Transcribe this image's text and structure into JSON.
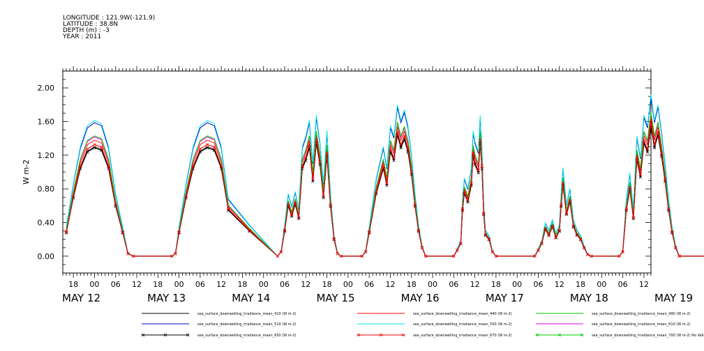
{
  "header": {
    "longitude": "LONGITUDE : 121.9W(-121.9)",
    "latitude": "LATITUDE : 38.8N",
    "depth": "DEPTH (m) : -3",
    "year": "YEAR : 2011"
  },
  "chart_data": {
    "type": "line",
    "ylabel": "W m-2",
    "ylim": [
      -0.2,
      2.2
    ],
    "yticks": [
      "0.00",
      "0.40",
      "0.80",
      "1.20",
      "1.60",
      "2.00"
    ],
    "xlim_hours": [
      -9,
      158
    ],
    "hour_tick_labels": [
      "18",
      "00",
      "06",
      "12"
    ],
    "day_labels": [
      "MAY 12",
      "MAY 13",
      "MAY 14",
      "MAY 15",
      "MAY 16",
      "MAY 17",
      "MAY 18",
      "MAY 19"
    ],
    "grid": false,
    "legend_position": "bottom",
    "series": [
      {
        "name": "sea_surface_downwelling_irradiance_mean_410 (W m-2)",
        "color": "#000000",
        "marker": "none",
        "scale": 1.0
      },
      {
        "name": "sea_surface_downwelling_irradiance_mean_440 (W m-2)",
        "color": "#ff0000",
        "marker": "none",
        "scale": 1.06
      },
      {
        "name": "sea_surface_downwelling_irradiance_mean_490 (W m-2)",
        "color": "#00cc00",
        "marker": "none",
        "scale": 1.1
      },
      {
        "name": "sea_surface_downwelling_irradiance_mean_510 (W m-2)",
        "color": "#0000cc",
        "marker": "none",
        "scale": 1.22
      },
      {
        "name": "sea_surface_downwelling_irradiance_mean_550 (W m-2)",
        "color": "#00e5e5",
        "marker": "none",
        "scale": 1.24
      },
      {
        "name": "sea_surface_downwelling_irradiance_mean_610 (W m-2)",
        "color": "#e600e6",
        "marker": "none",
        "scale": 1.09
      },
      {
        "name": "sea_surface_downwelling_irradiance_mean_650 (W m-2)",
        "color": "#000000",
        "marker": "x",
        "scale": 0.99
      },
      {
        "name": "sea_surface_downwelling_irradiance_mean_670 (W m-2)",
        "color": "#ff0000",
        "marker": "x",
        "scale": 1.02
      },
      {
        "name": "sea_surface_downwelling_irradiance_mean_700 (W m-2) No Valid Data",
        "color": "#00cc00",
        "marker": "x",
        "scale": 0
      }
    ],
    "reference_series_410": [
      [
        -8,
        0.28
      ],
      [
        -6,
        0.7
      ],
      [
        -4,
        1.05
      ],
      [
        -2,
        1.25
      ],
      [
        0,
        1.3
      ],
      [
        2,
        1.27
      ],
      [
        4,
        1.05
      ],
      [
        6,
        0.6
      ],
      [
        8,
        0.28
      ],
      [
        9.5,
        0.03
      ],
      [
        11,
        0
      ],
      [
        22,
        0
      ],
      [
        23,
        0.03
      ],
      [
        24,
        0.28
      ],
      [
        26,
        0.7
      ],
      [
        28,
        1.05
      ],
      [
        30,
        1.25
      ],
      [
        32,
        1.3
      ],
      [
        34,
        1.27
      ],
      [
        36,
        1.05
      ],
      [
        38,
        0.55
      ],
      [
        44,
        0.3
      ],
      [
        52,
        0
      ],
      [
        53,
        0.05
      ],
      [
        54,
        0.3
      ],
      [
        55,
        0.6
      ],
      [
        56,
        0.48
      ],
      [
        57,
        0.62
      ],
      [
        58,
        0.45
      ],
      [
        59,
        1.05
      ],
      [
        60,
        1.15
      ],
      [
        61,
        1.3
      ],
      [
        62,
        0.9
      ],
      [
        63,
        1.35
      ],
      [
        64,
        1.1
      ],
      [
        65,
        0.7
      ],
      [
        66,
        1.2
      ],
      [
        67,
        0.6
      ],
      [
        68,
        0.2
      ],
      [
        69,
        0.03
      ],
      [
        70,
        0
      ],
      [
        76,
        0
      ],
      [
        77,
        0.05
      ],
      [
        78,
        0.28
      ],
      [
        80,
        0.75
      ],
      [
        82,
        1.05
      ],
      [
        83,
        0.85
      ],
      [
        84,
        1.25
      ],
      [
        85,
        1.15
      ],
      [
        86,
        1.45
      ],
      [
        87,
        1.3
      ],
      [
        88,
        1.4
      ],
      [
        89,
        1.25
      ],
      [
        90,
        0.98
      ],
      [
        91,
        0.6
      ],
      [
        92,
        0.3
      ],
      [
        93,
        0.1
      ],
      [
        94,
        0
      ],
      [
        102,
        0
      ],
      [
        103,
        0.07
      ],
      [
        104,
        0.15
      ],
      [
        104.5,
        0.55
      ],
      [
        105,
        0.75
      ],
      [
        106,
        0.65
      ],
      [
        107,
        0.85
      ],
      [
        107.5,
        1.2
      ],
      [
        108,
        1.1
      ],
      [
        109,
        1.0
      ],
      [
        109.5,
        1.35
      ],
      [
        110,
        1.05
      ],
      [
        110.5,
        0.5
      ],
      [
        111,
        0.25
      ],
      [
        112,
        0.2
      ],
      [
        113,
        0.05
      ],
      [
        114,
        0
      ],
      [
        125,
        0
      ],
      [
        126,
        0.07
      ],
      [
        127,
        0.15
      ],
      [
        128,
        0.32
      ],
      [
        129,
        0.25
      ],
      [
        130,
        0.35
      ],
      [
        131,
        0.22
      ],
      [
        132,
        0.3
      ],
      [
        132.5,
        0.6
      ],
      [
        133,
        0.85
      ],
      [
        134,
        0.5
      ],
      [
        135,
        0.65
      ],
      [
        136,
        0.35
      ],
      [
        137,
        0.25
      ],
      [
        138,
        0.2
      ],
      [
        139,
        0.1
      ],
      [
        140,
        0.02
      ],
      [
        141,
        0
      ],
      [
        149,
        0
      ],
      [
        150,
        0.05
      ],
      [
        151,
        0.55
      ],
      [
        152,
        0.8
      ],
      [
        153,
        0.45
      ],
      [
        154,
        1.15
      ],
      [
        155,
        0.95
      ],
      [
        156,
        1.35
      ],
      [
        157,
        1.25
      ],
      [
        158,
        1.55
      ],
      [
        159,
        1.3
      ],
      [
        160,
        1.45
      ],
      [
        161,
        1.2
      ],
      [
        162,
        0.9
      ],
      [
        163,
        0.55
      ],
      [
        164,
        0.28
      ],
      [
        165,
        0.1
      ],
      [
        166,
        0
      ],
      [
        176,
        0
      ],
      [
        177,
        0.02
      ],
      [
        178,
        0.05
      ]
    ]
  },
  "legend_rows": [
    [
      "sea_surface_downwelling_irradiance_mean_410 (W m-2)",
      "sea_surface_downwelling_irradiance_mean_440 (W m-2)",
      "sea_surface_downwelling_irradiance_mean_490 (W m-2)"
    ],
    [
      "sea_surface_downwelling_irradiance_mean_510 (W m-2)",
      "sea_surface_downwelling_irradiance_mean_550 (W m-2)",
      "sea_surface_downwelling_irradiance_mean_610 (W m-2)"
    ],
    [
      "sea_surface_downwelling_irradiance_mean_650 (W m-2)",
      "sea_surface_downwelling_irradiance_mean_670 (W m-2)",
      "sea_surface_downwelling_irradiance_mean_700 (W m-2) No Valid Data"
    ]
  ]
}
